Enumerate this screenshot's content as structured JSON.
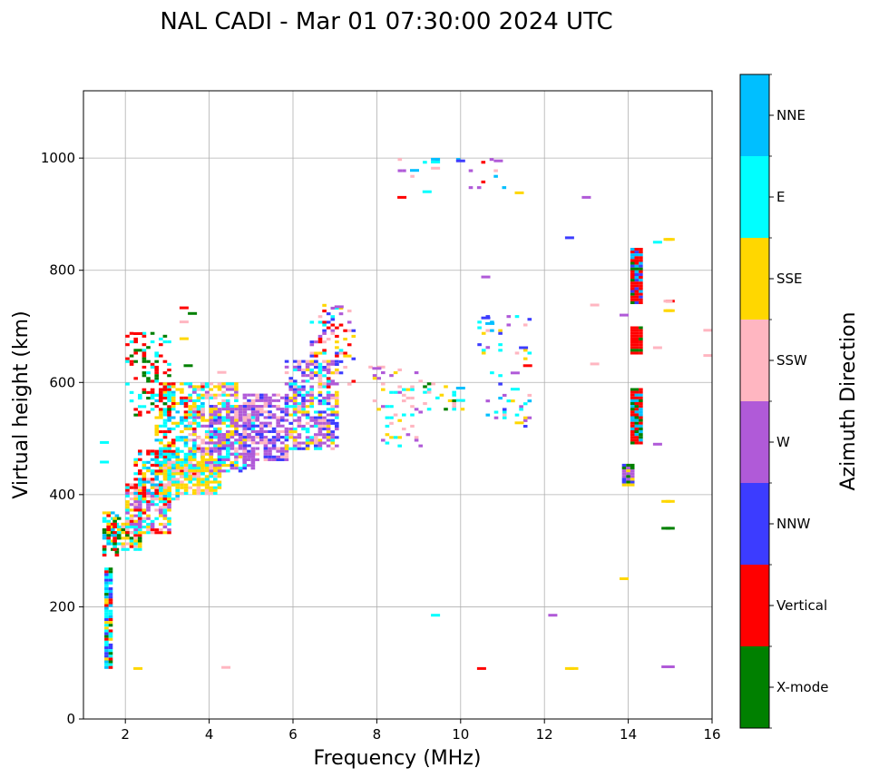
{
  "chart_data": {
    "type": "scatter",
    "title": "NAL CADI - Mar 01 07:30:00 2024 UTC",
    "xlabel": "Frequency (MHz)",
    "ylabel": "Virtual height (km)",
    "xlim": [
      1,
      16
    ],
    "ylim": [
      0,
      1120
    ],
    "xticks": [
      2,
      4,
      6,
      8,
      10,
      12,
      14,
      16
    ],
    "yticks": [
      0,
      200,
      400,
      600,
      800,
      1000
    ],
    "grid": true,
    "colorbar": {
      "label": "Azimuth Direction",
      "categories": [
        {
          "name": "X-mode",
          "color": "#008000"
        },
        {
          "name": "Vertical",
          "color": "#ff0000"
        },
        {
          "name": "NNW",
          "color": "#3c3cff"
        },
        {
          "name": "W",
          "color": "#b05ad8"
        },
        {
          "name": "SSW",
          "color": "#ffb6c1"
        },
        {
          "name": "SSE",
          "color": "#ffd700"
        },
        {
          "name": "E",
          "color": "#00ffff"
        },
        {
          "name": "NNE",
          "color": "#00bfff"
        }
      ]
    },
    "regions": [
      {
        "name": "O-trace-1.6MHz-low",
        "xmin": 1.5,
        "xmax": 1.65,
        "ymin": 90,
        "ymax": 270,
        "colors": [
          "E",
          "E",
          "E",
          "NNE",
          "SSE",
          "Vertical",
          "NNW",
          "X-mode"
        ],
        "density": 0.9
      },
      {
        "name": "O-trace-1.6MHz-mid",
        "xmin": 1.45,
        "xmax": 1.75,
        "ymin": 290,
        "ymax": 370,
        "colors": [
          "E",
          "SSE",
          "NNE",
          "X-mode",
          "Vertical"
        ],
        "density": 0.7
      },
      {
        "name": "E-layer-start",
        "xmin": 1.7,
        "xmax": 2.3,
        "ymin": 300,
        "ymax": 360,
        "colors": [
          "SSE",
          "E",
          "SSW",
          "Vertical",
          "X-mode"
        ],
        "density": 0.75
      },
      {
        "name": "E-layer-rise-lower",
        "xmin": 2.0,
        "xmax": 3.0,
        "ymin": 330,
        "ymax": 420,
        "colors": [
          "SSW",
          "SSE",
          "Vertical",
          "E",
          "W"
        ],
        "density": 0.7
      },
      {
        "name": "E-layer-rise-upper",
        "xmin": 2.2,
        "xmax": 3.2,
        "ymin": 390,
        "ymax": 480,
        "colors": [
          "E",
          "SSE",
          "Vertical",
          "NNE",
          "SSW"
        ],
        "density": 0.65
      },
      {
        "name": "cyan-cluster",
        "xmin": 2.7,
        "xmax": 3.8,
        "ymin": 430,
        "ymax": 600,
        "colors": [
          "E",
          "E",
          "SSE",
          "Vertical",
          "NNE"
        ],
        "density": 0.5
      },
      {
        "name": "yellow-band-lower",
        "xmin": 2.9,
        "xmax": 4.2,
        "ymin": 400,
        "ymax": 460,
        "colors": [
          "SSE",
          "SSE",
          "SSW",
          "E"
        ],
        "density": 0.8
      },
      {
        "name": "yellow-band-upper",
        "xmin": 3.5,
        "xmax": 4.6,
        "ymin": 450,
        "ymax": 600,
        "colors": [
          "SSE",
          "SSE",
          "E",
          "SSW",
          "W"
        ],
        "density": 0.55
      },
      {
        "name": "scatter-red-high",
        "xmin": 2.0,
        "xmax": 3.0,
        "ymin": 540,
        "ymax": 690,
        "colors": [
          "Vertical",
          "Vertical",
          "E",
          "X-mode"
        ],
        "density": 0.3
      },
      {
        "name": "W-trace-main-1",
        "xmin": 4.0,
        "xmax": 5.0,
        "ymin": 440,
        "ymax": 560,
        "colors": [
          "W",
          "W",
          "W",
          "NNW",
          "SSE",
          "E"
        ],
        "density": 0.6
      },
      {
        "name": "W-trace-main-2",
        "xmin": 4.8,
        "xmax": 5.8,
        "ymin": 460,
        "ymax": 580,
        "colors": [
          "W",
          "W",
          "NNW",
          "W",
          "SSW"
        ],
        "density": 0.65
      },
      {
        "name": "W-trace-main-3",
        "xmin": 5.8,
        "xmax": 7.0,
        "ymin": 480,
        "ymax": 640,
        "colors": [
          "W",
          "W",
          "NNW",
          "SSW",
          "E",
          "SSE"
        ],
        "density": 0.6
      },
      {
        "name": "F-top-scatter",
        "xmin": 6.4,
        "xmax": 7.4,
        "ymin": 590,
        "ymax": 740,
        "colors": [
          "W",
          "NNW",
          "SSE",
          "E",
          "Vertical",
          "SSW"
        ],
        "density": 0.25
      },
      {
        "name": "sparse-8-9MHz",
        "xmin": 7.8,
        "xmax": 9.0,
        "ymin": 480,
        "ymax": 630,
        "colors": [
          "E",
          "W",
          "SSW",
          "SSE",
          "E"
        ],
        "density": 0.12
      },
      {
        "name": "sparse-9-10MHz",
        "xmin": 9.0,
        "xmax": 10.0,
        "ymin": 550,
        "ymax": 600,
        "colors": [
          "SSW",
          "E",
          "SSE",
          "X-mode"
        ],
        "density": 0.2
      },
      {
        "name": "sparse-10.5-11.5MHz",
        "xmin": 10.4,
        "xmax": 11.6,
        "ymin": 520,
        "ymax": 720,
        "colors": [
          "NNE",
          "E",
          "SSE",
          "SSW",
          "NNW",
          "W"
        ],
        "density": 0.08
      },
      {
        "name": "high-sparse-900-1000",
        "xmin": 8.5,
        "xmax": 11.0,
        "ymin": 930,
        "ymax": 1000,
        "colors": [
          "Vertical",
          "E",
          "SSW",
          "NNE",
          "W"
        ],
        "density": 0.05
      },
      {
        "name": "14MHz-column-1",
        "xmin": 14.05,
        "xmax": 14.25,
        "ymin": 740,
        "ymax": 840,
        "colors": [
          "Vertical",
          "Vertical",
          "X-mode",
          "NNW",
          "NNE"
        ],
        "density": 1.0
      },
      {
        "name": "14MHz-column-2",
        "xmin": 14.05,
        "xmax": 14.25,
        "ymin": 650,
        "ymax": 700,
        "colors": [
          "Vertical",
          "Vertical",
          "X-mode"
        ],
        "density": 1.0
      },
      {
        "name": "14MHz-column-3",
        "xmin": 14.05,
        "xmax": 14.25,
        "ymin": 490,
        "ymax": 590,
        "colors": [
          "Vertical",
          "Vertical",
          "X-mode",
          "NNE"
        ],
        "density": 1.0
      },
      {
        "name": "13.9MHz-W-block",
        "xmin": 13.85,
        "xmax": 14.05,
        "ymin": 415,
        "ymax": 455,
        "colors": [
          "W",
          "W",
          "NNW",
          "X-mode",
          "SSE"
        ],
        "density": 1.0
      }
    ],
    "marks": [
      {
        "x": 2.3,
        "y": 90,
        "az": "SSE"
      },
      {
        "x": 4.4,
        "y": 92,
        "az": "SSW"
      },
      {
        "x": 10.5,
        "y": 90,
        "az": "Vertical"
      },
      {
        "x": 12.6,
        "y": 90,
        "az": "SSE"
      },
      {
        "x": 12.7,
        "y": 90,
        "az": "SSE"
      },
      {
        "x": 14.9,
        "y": 93,
        "az": "W"
      },
      {
        "x": 15.0,
        "y": 93,
        "az": "W"
      },
      {
        "x": 9.4,
        "y": 185,
        "az": "E"
      },
      {
        "x": 12.2,
        "y": 185,
        "az": "W"
      },
      {
        "x": 13.9,
        "y": 250,
        "az": "SSE"
      },
      {
        "x": 15.0,
        "y": 340,
        "az": "X-mode"
      },
      {
        "x": 14.9,
        "y": 340,
        "az": "X-mode"
      },
      {
        "x": 15.0,
        "y": 388,
        "az": "SSE"
      },
      {
        "x": 14.9,
        "y": 388,
        "az": "SSE"
      },
      {
        "x": 14.7,
        "y": 490,
        "az": "W"
      },
      {
        "x": 14.7,
        "y": 662,
        "az": "SSW"
      },
      {
        "x": 15.0,
        "y": 728,
        "az": "SSE"
      },
      {
        "x": 14.95,
        "y": 728,
        "az": "SSE"
      },
      {
        "x": 15.0,
        "y": 745,
        "az": "Vertical"
      },
      {
        "x": 14.95,
        "y": 745,
        "az": "SSW"
      },
      {
        "x": 15.9,
        "y": 648,
        "az": "SSW"
      },
      {
        "x": 15.9,
        "y": 693,
        "az": "SSW"
      },
      {
        "x": 13.9,
        "y": 720,
        "az": "W"
      },
      {
        "x": 14.7,
        "y": 850,
        "az": "E"
      },
      {
        "x": 15.0,
        "y": 855,
        "az": "SSE"
      },
      {
        "x": 14.95,
        "y": 855,
        "az": "SSE"
      },
      {
        "x": 12.6,
        "y": 858,
        "az": "NNW"
      },
      {
        "x": 13.0,
        "y": 930,
        "az": "W"
      },
      {
        "x": 13.2,
        "y": 738,
        "az": "SSW"
      },
      {
        "x": 13.2,
        "y": 633,
        "az": "SSW"
      },
      {
        "x": 8.6,
        "y": 930,
        "az": "Vertical"
      },
      {
        "x": 9.2,
        "y": 940,
        "az": "E"
      },
      {
        "x": 8.9,
        "y": 978,
        "az": "NNE"
      },
      {
        "x": 9.4,
        "y": 993,
        "az": "E"
      },
      {
        "x": 9.4,
        "y": 998,
        "az": "NNE"
      },
      {
        "x": 9.4,
        "y": 982,
        "az": "SSW"
      },
      {
        "x": 10.0,
        "y": 995,
        "az": "NNW"
      },
      {
        "x": 10.9,
        "y": 995,
        "az": "W"
      },
      {
        "x": 11.4,
        "y": 938,
        "az": "SSE"
      },
      {
        "x": 10.6,
        "y": 788,
        "az": "W"
      },
      {
        "x": 10.6,
        "y": 715,
        "az": "NNW"
      },
      {
        "x": 10.7,
        "y": 705,
        "az": "NNE"
      },
      {
        "x": 11.5,
        "y": 662,
        "az": "NNW"
      },
      {
        "x": 11.3,
        "y": 617,
        "az": "W"
      },
      {
        "x": 11.6,
        "y": 630,
        "az": "Vertical"
      },
      {
        "x": 11.3,
        "y": 588,
        "az": "E"
      },
      {
        "x": 11.4,
        "y": 528,
        "az": "SSE"
      },
      {
        "x": 10.0,
        "y": 568,
        "az": "E"
      },
      {
        "x": 10.0,
        "y": 590,
        "az": "NNE"
      },
      {
        "x": 8.0,
        "y": 625,
        "az": "W"
      },
      {
        "x": 3.4,
        "y": 733,
        "az": "Vertical"
      },
      {
        "x": 3.6,
        "y": 723,
        "az": "X-mode"
      },
      {
        "x": 3.4,
        "y": 708,
        "az": "SSW"
      },
      {
        "x": 3.4,
        "y": 678,
        "az": "SSE"
      },
      {
        "x": 2.3,
        "y": 687,
        "az": "Vertical"
      },
      {
        "x": 3.5,
        "y": 630,
        "az": "X-mode"
      },
      {
        "x": 4.3,
        "y": 618,
        "az": "SSW"
      },
      {
        "x": 7.1,
        "y": 735,
        "az": "W"
      },
      {
        "x": 1.5,
        "y": 493,
        "az": "E"
      },
      {
        "x": 1.5,
        "y": 458,
        "az": "E"
      }
    ]
  }
}
